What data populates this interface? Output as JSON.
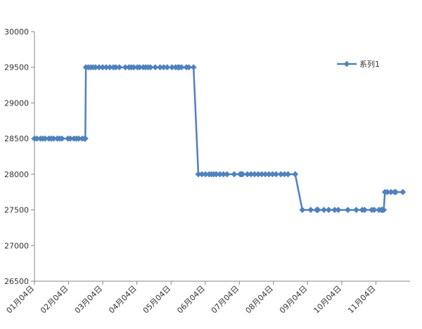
{
  "chart_data": {
    "type": "line",
    "title": "",
    "xlabel": "",
    "ylabel": "",
    "ylim": [
      26500,
      30000
    ],
    "y_ticks": [
      26500,
      27000,
      27500,
      28000,
      28500,
      29000,
      29500,
      30000
    ],
    "x_tick_labels": [
      "01月04日",
      "02月04日",
      "03月04日",
      "04月04日",
      "05月04日",
      "06月04日",
      "07月04日",
      "08月04日",
      "09月04日",
      "10月04日",
      "11月04日"
    ],
    "x_range_days": [
      0,
      314
    ],
    "grid": false,
    "legend_position": "top-right",
    "series": [
      {
        "name": "系列1",
        "color": "#4f81bd",
        "x": [
          0,
          2,
          5,
          7,
          9,
          12,
          14,
          16,
          19,
          21,
          23,
          28,
          30,
          33,
          35,
          37,
          40,
          42,
          42.5,
          43,
          45,
          47,
          49,
          51,
          54,
          57,
          60,
          63,
          66,
          68,
          71,
          76,
          79,
          81,
          83,
          86,
          88,
          91,
          93,
          95,
          97,
          101,
          105,
          108,
          111,
          115,
          118,
          120,
          121,
          123,
          127,
          129,
          133,
          137,
          140,
          143,
          146,
          148,
          150,
          152,
          155,
          158,
          161,
          167,
          172,
          173,
          174,
          178,
          181,
          184,
          187,
          190,
          193,
          196,
          199,
          202,
          206,
          209,
          212,
          218,
          224,
          231,
          236,
          236.5,
          237,
          242,
          246,
          251,
          254,
          262,
          269,
          274,
          276,
          282,
          284,
          288,
          290,
          291,
          292,
          293,
          295,
          298,
          301,
          302,
          308
        ],
        "y": [
          28500,
          28500,
          28500,
          28500,
          28500,
          28500,
          28500,
          28500,
          28500,
          28500,
          28500,
          28500,
          28500,
          28500,
          28500,
          28500,
          28500,
          28500,
          28500,
          29500,
          29500,
          29500,
          29500,
          29500,
          29500,
          29500,
          29500,
          29500,
          29500,
          29500,
          29500,
          29500,
          29500,
          29500,
          29500,
          29500,
          29500,
          29500,
          29500,
          29500,
          29500,
          29500,
          29500,
          29500,
          29500,
          29500,
          29500,
          29500,
          29500,
          29500,
          29500,
          29500,
          29500,
          28000,
          28000,
          28000,
          28000,
          28000,
          28000,
          28000,
          28000,
          28000,
          28000,
          28000,
          28000,
          28000,
          28000,
          28000,
          28000,
          28000,
          28000,
          28000,
          28000,
          28000,
          28000,
          28000,
          28000,
          28000,
          28000,
          28000,
          27500,
          27500,
          27500,
          27500,
          27500,
          27500,
          27500,
          27500,
          27500,
          27500,
          27500,
          27500,
          27500,
          27500,
          27500,
          27500,
          27500,
          27500,
          27500,
          27750,
          27750,
          27750,
          27750,
          27750,
          27750
        ]
      }
    ]
  }
}
